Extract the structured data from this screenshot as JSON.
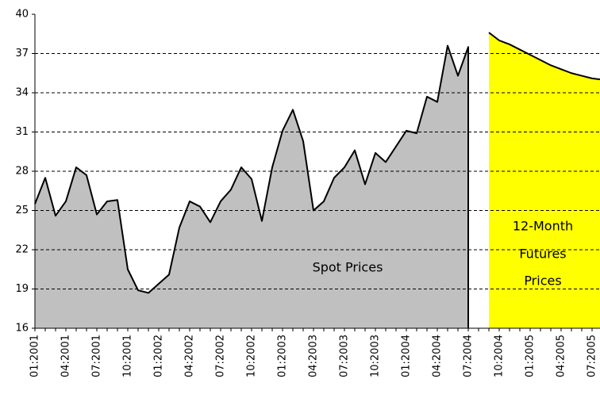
{
  "chart_data": {
    "type": "area",
    "categories": [
      "01:2001",
      null,
      null,
      "04:2001",
      null,
      null,
      "07:2001",
      null,
      null,
      "10:2001",
      null,
      null,
      "01:2002",
      null,
      null,
      "04:2002",
      null,
      null,
      "07:2002",
      null,
      null,
      "10:2002",
      null,
      null,
      "01:2003",
      null,
      null,
      "04:2003",
      null,
      null,
      "07:2003",
      null,
      null,
      "10:2003",
      null,
      null,
      "01:2004",
      null,
      null,
      "04:2004",
      null,
      null,
      "07:2004",
      null,
      null,
      "10:2004",
      null,
      null,
      "01:2005",
      null,
      null,
      "04:2005",
      null,
      null,
      "07:2005",
      null
    ],
    "series": [
      {
        "color": "#c0c0c0",
        "line_color": "#000000",
        "values": [
          25.5,
          27.5,
          24.6,
          25.7,
          28.3,
          27.7,
          24.7,
          25.7,
          25.8,
          20.5,
          18.9,
          18.7,
          19.4,
          20.1,
          23.7,
          25.7,
          25.3,
          24.1,
          25.7,
          26.6,
          28.3,
          27.4,
          24.2,
          28.3,
          31.1,
          32.7,
          30.3,
          25.0,
          25.7,
          27.5,
          28.3,
          29.6,
          27.0,
          29.4,
          28.7,
          29.9,
          31.1,
          30.9,
          33.7,
          33.3,
          37.6,
          35.3,
          37.5,
          null,
          null,
          null,
          null,
          null,
          null,
          null,
          null,
          null,
          null,
          null,
          null,
          null
        ]
      },
      {
        "color": "#ffff00",
        "line_color": "#000000",
        "values": [
          null,
          null,
          null,
          null,
          null,
          null,
          null,
          null,
          null,
          null,
          null,
          null,
          null,
          null,
          null,
          null,
          null,
          null,
          null,
          null,
          null,
          null,
          null,
          null,
          null,
          null,
          null,
          null,
          null,
          null,
          null,
          null,
          null,
          null,
          null,
          null,
          null,
          null,
          null,
          null,
          null,
          null,
          null,
          null,
          38.6,
          38.0,
          37.7,
          37.3,
          36.9,
          36.5,
          36.1,
          35.8,
          35.5,
          35.3,
          35.1,
          35.0
        ]
      }
    ],
    "annotations": [
      "Spot Prices",
      "12-Month",
      "Futures",
      "Prices"
    ],
    "ylim": [
      16,
      40
    ],
    "yticks": [
      16,
      19,
      22,
      25,
      28,
      31,
      34,
      37,
      40
    ],
    "grid": true
  }
}
